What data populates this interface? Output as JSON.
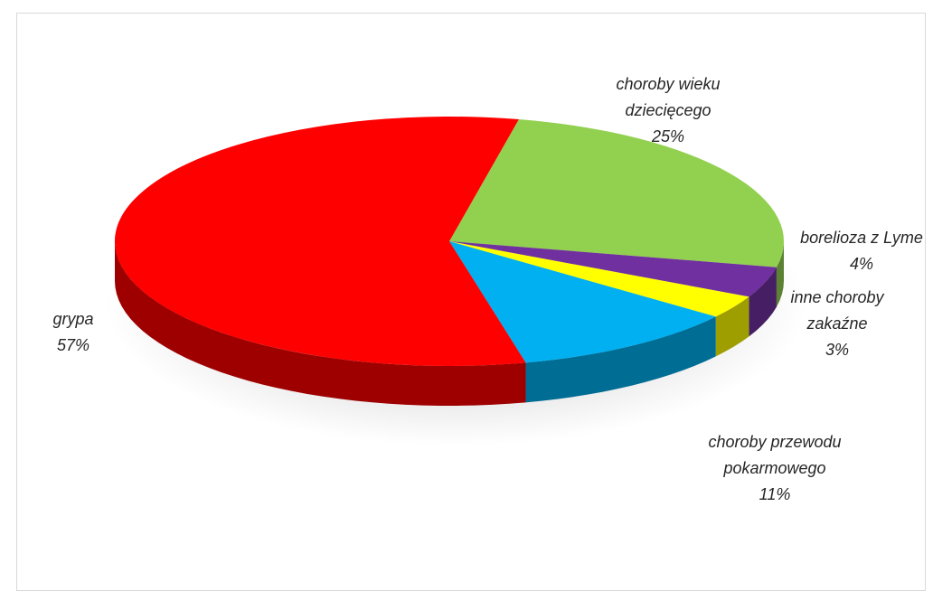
{
  "chart_data": {
    "type": "pie",
    "title": "",
    "style": "3d-exploded-pie",
    "slices": [
      {
        "label": "choroby wieku dziecięcego",
        "percent_label": "25%",
        "value": 25,
        "color": "#92d050",
        "label_lines": [
          "choroby wieku",
          "dziecięcego",
          "25%"
        ]
      },
      {
        "label": "borelioza z Lyme",
        "percent_label": "4%",
        "value": 4,
        "color": "#7030a0",
        "label_lines": [
          "borelioza z Lyme",
          "4%"
        ]
      },
      {
        "label": "inne choroby zakaźne",
        "percent_label": "3%",
        "value": 3,
        "color": "#ffff00",
        "label_lines": [
          "inne choroby",
          "zakaźne",
          "3%"
        ]
      },
      {
        "label": "choroby przewodu pokarmowego",
        "percent_label": "11%",
        "value": 11,
        "color": "#00b0f0",
        "label_lines": [
          "choroby przewodu",
          "pokarmowego",
          "11%"
        ]
      },
      {
        "label": "grypa",
        "percent_label": "57%",
        "value": 57,
        "color": "#ff0000",
        "label_lines": [
          "grypa",
          "57%"
        ]
      }
    ]
  }
}
